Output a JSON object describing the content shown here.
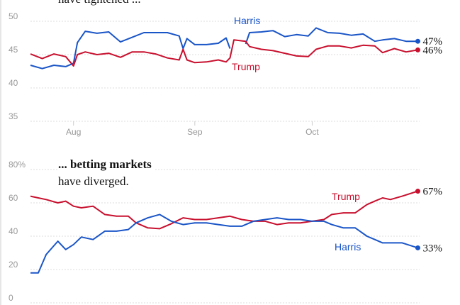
{
  "colors": {
    "harris": "#1a55c7",
    "trump": "#c8102e"
  },
  "annotations": {
    "top": "have tightened ...",
    "bottom_bold": "... betting markets",
    "bottom": "have diverged."
  },
  "chart_data": [
    {
      "type": "line",
      "title": "",
      "xlabel": "",
      "ylabel": "",
      "ylim": [
        35,
        50
      ],
      "yticks": [
        "50",
        "45",
        "40",
        "35"
      ],
      "xticks": [
        {
          "label": "Aug",
          "date": "2024-08-01"
        },
        {
          "label": "Sep",
          "date": "2024-09-01"
        },
        {
          "label": "Oct",
          "date": "2024-10-01"
        }
      ],
      "x": [
        "07-21",
        "07-24",
        "07-27",
        "07-30",
        "08-01",
        "08-02",
        "08-04",
        "08-07",
        "08-10",
        "08-13",
        "08-16",
        "08-19",
        "08-22",
        "08-25",
        "08-28",
        "08-29",
        "08-30",
        "09-01",
        "09-04",
        "09-07",
        "09-09",
        "09-10",
        "09-11",
        "09-14",
        "09-15",
        "09-18",
        "09-21",
        "09-24",
        "09-27",
        "09-30",
        "10-02",
        "10-05",
        "10-08",
        "10-11",
        "10-14",
        "10-17",
        "10-19",
        "10-22",
        "10-25",
        "10-28"
      ],
      "series": [
        {
          "name": "Harris",
          "end_label": "47%",
          "values": [
            43.4,
            42.9,
            43.4,
            43.2,
            43.7,
            46.8,
            48.5,
            48.2,
            48.4,
            46.9,
            47.6,
            48.3,
            48.3,
            48.3,
            47.8,
            45.9,
            47.4,
            46.5,
            46.5,
            46.7,
            47.5,
            45.9,
            null,
            46.6,
            48.3,
            48.4,
            48.6,
            47.7,
            48.0,
            47.8,
            49.0,
            48.3,
            48.2,
            47.9,
            48.1,
            47.0,
            47.2,
            47.4,
            47.0,
            47.0
          ]
        },
        {
          "name": "Trump",
          "end_label": "46%",
          "values": [
            45.1,
            44.4,
            45.1,
            44.7,
            43.3,
            45.0,
            45.4,
            45.0,
            45.2,
            44.6,
            45.4,
            45.4,
            45.1,
            44.5,
            44.2,
            45.8,
            44.2,
            43.8,
            43.9,
            44.2,
            43.9,
            44.5,
            47.2,
            47.0,
            46.2,
            45.8,
            45.6,
            45.2,
            44.8,
            44.7,
            45.8,
            46.3,
            46.3,
            46.0,
            46.4,
            46.3,
            45.3,
            45.9,
            45.4,
            45.7
          ]
        }
      ]
    },
    {
      "type": "line",
      "title": "",
      "xlabel": "",
      "ylabel": "",
      "ylim": [
        0,
        80
      ],
      "yticks": [
        "80%",
        "60",
        "40",
        "20",
        "0"
      ],
      "x": [
        "07-21",
        "07-23",
        "07-25",
        "07-28",
        "07-30",
        "08-01",
        "08-03",
        "08-06",
        "08-09",
        "08-12",
        "08-15",
        "08-17",
        "08-20",
        "08-23",
        "08-26",
        "08-29",
        "09-01",
        "09-04",
        "09-07",
        "09-10",
        "09-13",
        "09-16",
        "09-19",
        "09-22",
        "09-25",
        "09-28",
        "10-01",
        "10-04",
        "10-06",
        "10-09",
        "10-12",
        "10-15",
        "10-17",
        "10-19",
        "10-21",
        "10-24",
        "10-28"
      ],
      "series": [
        {
          "name": "Trump",
          "end_label": "67%",
          "values": [
            64,
            63,
            62,
            60,
            61,
            58,
            57,
            58,
            53,
            52,
            52,
            48,
            45,
            44.5,
            47.5,
            51,
            50,
            50,
            51,
            52,
            50,
            49,
            49,
            47,
            48,
            48,
            49,
            50,
            53,
            54,
            54,
            59,
            61,
            63,
            62,
            64,
            67
          ]
        },
        {
          "name": "Harris",
          "end_label": "33%",
          "values": [
            18,
            18,
            29,
            37,
            32,
            35,
            39.5,
            38,
            43,
            43,
            44,
            48,
            51,
            53,
            49,
            47,
            48,
            48,
            47,
            46,
            46,
            49,
            50,
            51,
            50,
            50,
            49,
            49,
            47,
            45,
            45,
            40,
            38,
            36,
            36,
            36,
            33
          ]
        }
      ]
    }
  ]
}
